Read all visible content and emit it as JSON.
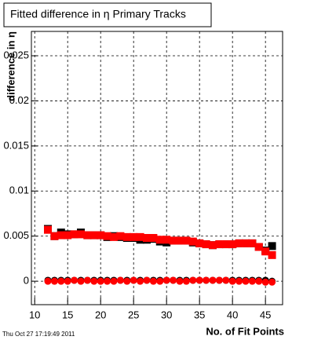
{
  "chart_data": {
    "type": "scatter",
    "title": "Fitted difference in  η Primary Tracks",
    "x_label": "No. of Fit Points",
    "y_label": "difference in η",
    "footer": "Thu Oct 27 17:19:49 2011",
    "x": [
      12,
      13,
      14,
      15,
      16,
      17,
      18,
      19,
      20,
      21,
      22,
      23,
      24,
      25,
      26,
      27,
      28,
      29,
      30,
      31,
      32,
      33,
      34,
      35,
      36,
      37,
      38,
      39,
      40,
      41,
      42,
      43,
      44,
      45,
      46
    ],
    "series": [
      {
        "color": "#000000",
        "marker": "square",
        "values": [
          0.0058,
          0.005,
          0.0054,
          0.0052,
          0.0052,
          0.0054,
          0.0051,
          0.0051,
          0.0051,
          0.0049,
          0.005,
          0.0049,
          0.0048,
          0.0048,
          0.0046,
          0.0046,
          0.0047,
          0.0044,
          0.0043,
          0.0045,
          0.0045,
          0.0045,
          0.0043,
          0.0042,
          0.0041,
          0.004,
          0.0041,
          0.0041,
          0.0041,
          0.0042,
          0.0042,
          0.0042,
          0.0038,
          0.0034,
          0.0039
        ]
      },
      {
        "color": "#ff0000",
        "marker": "square",
        "values": [
          0.0057,
          0.005,
          0.0051,
          0.0051,
          0.0052,
          0.0052,
          0.0051,
          0.0051,
          0.0051,
          0.005,
          0.0049,
          0.005,
          0.0049,
          0.0049,
          0.0049,
          0.0048,
          0.0048,
          0.0046,
          0.0046,
          0.0045,
          0.0045,
          0.0045,
          0.0044,
          0.0042,
          0.0041,
          0.004,
          0.0041,
          0.0041,
          0.0041,
          0.0042,
          0.0042,
          0.0042,
          0.0038,
          0.0033,
          0.0029
        ]
      },
      {
        "color": "#000000",
        "marker": "circle",
        "values": [
          0.0001,
          0.0001,
          0.0001,
          0.0001,
          0.0001,
          0.0001,
          0.0001,
          0.0001,
          0.0001,
          0.0001,
          0.0001,
          0.0001,
          0.0001,
          0.0001,
          0.0001,
          0.0001,
          0.0001,
          0.0001,
          0.0001,
          0.0001,
          0.0001,
          0.0001,
          0.0001,
          0.0001,
          0.0001,
          0.0001,
          0.0001,
          0.0001,
          0.0001,
          0.0001,
          0.0001,
          0.0001,
          0.0001,
          0.0001,
          0.0
        ]
      },
      {
        "color": "#ff0000",
        "marker": "circle",
        "values": [
          0.0,
          0.0,
          0.0,
          0.0,
          0.0001,
          0.0,
          0.0001,
          0.0,
          0.0,
          0.0,
          0.0,
          0.0001,
          0.0,
          0.0001,
          0.0,
          0.0001,
          0.0,
          0.0,
          0.0001,
          0.0001,
          0.0,
          0.0,
          0.0001,
          0.0001,
          0.0001,
          0.0001,
          0.0001,
          0.0001,
          0.0,
          0.0,
          0.0,
          0.0,
          0.0,
          -0.0001,
          -0.0001
        ]
      }
    ],
    "xlim": [
      9.5,
      47.6
    ],
    "ylim": [
      -0.0026,
      0.0277
    ],
    "xticks": [
      10,
      15,
      20,
      25,
      30,
      35,
      40,
      45
    ],
    "yticks": [
      0,
      0.005,
      0.01,
      0.015,
      0.02,
      0.025
    ],
    "grid": true
  }
}
